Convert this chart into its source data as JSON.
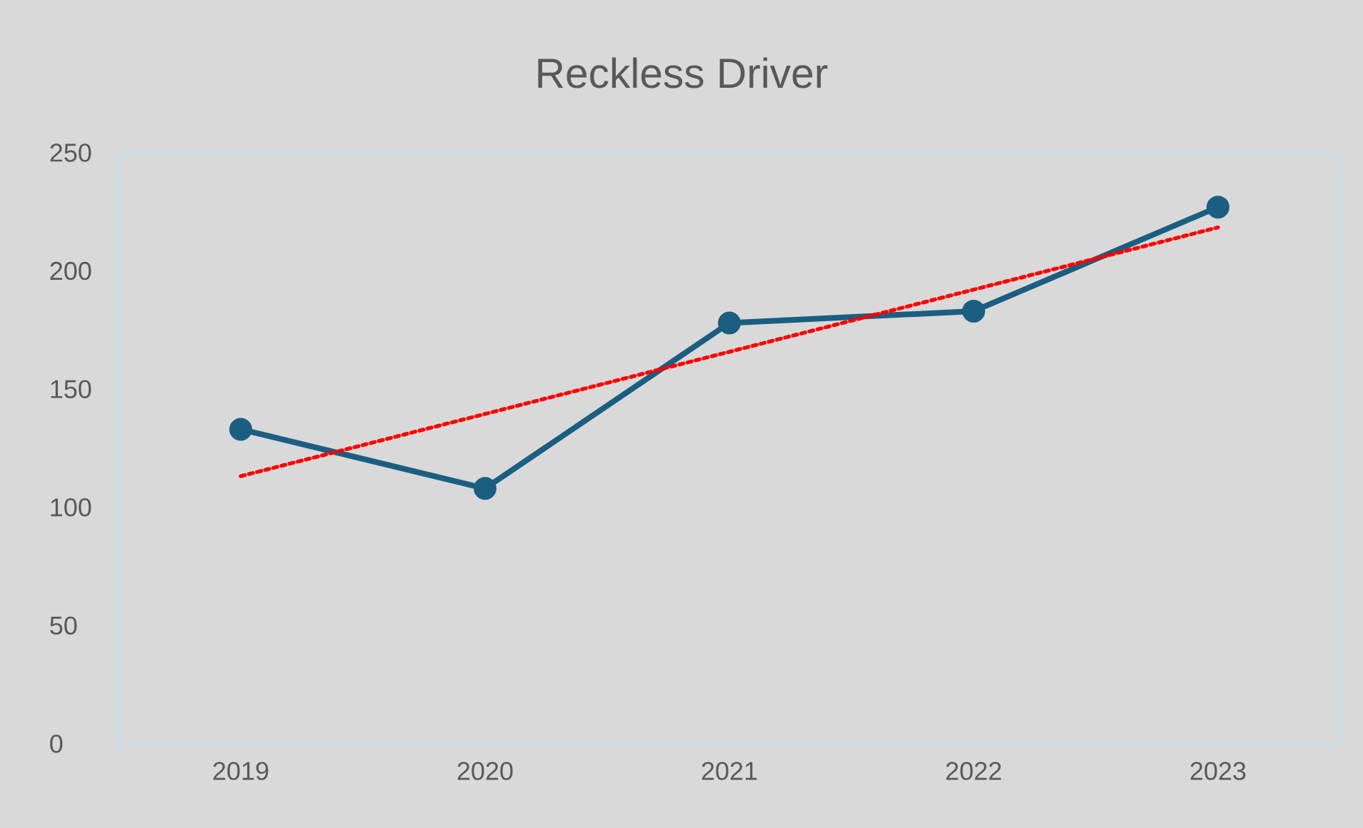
{
  "chart_data": {
    "type": "line",
    "title": "Reckless Driver",
    "categories": [
      "2019",
      "2020",
      "2021",
      "2022",
      "2023"
    ],
    "series": [
      {
        "color": "#1b5e82",
        "values": [
          133,
          108,
          178,
          183,
          227
        ],
        "marker": "circle",
        "line_style": "solid"
      },
      {
        "type": "line",
        "color": "#ff0000",
        "values": [
          113.2,
          139.5,
          165.8,
          192.1,
          218.4
        ],
        "marker": "none",
        "line_style": "dotted"
      }
    ],
    "ylim": [
      0,
      250
    ],
    "yticks": [
      0,
      50,
      100,
      150,
      200,
      250
    ],
    "grid": false,
    "legend": false
  }
}
